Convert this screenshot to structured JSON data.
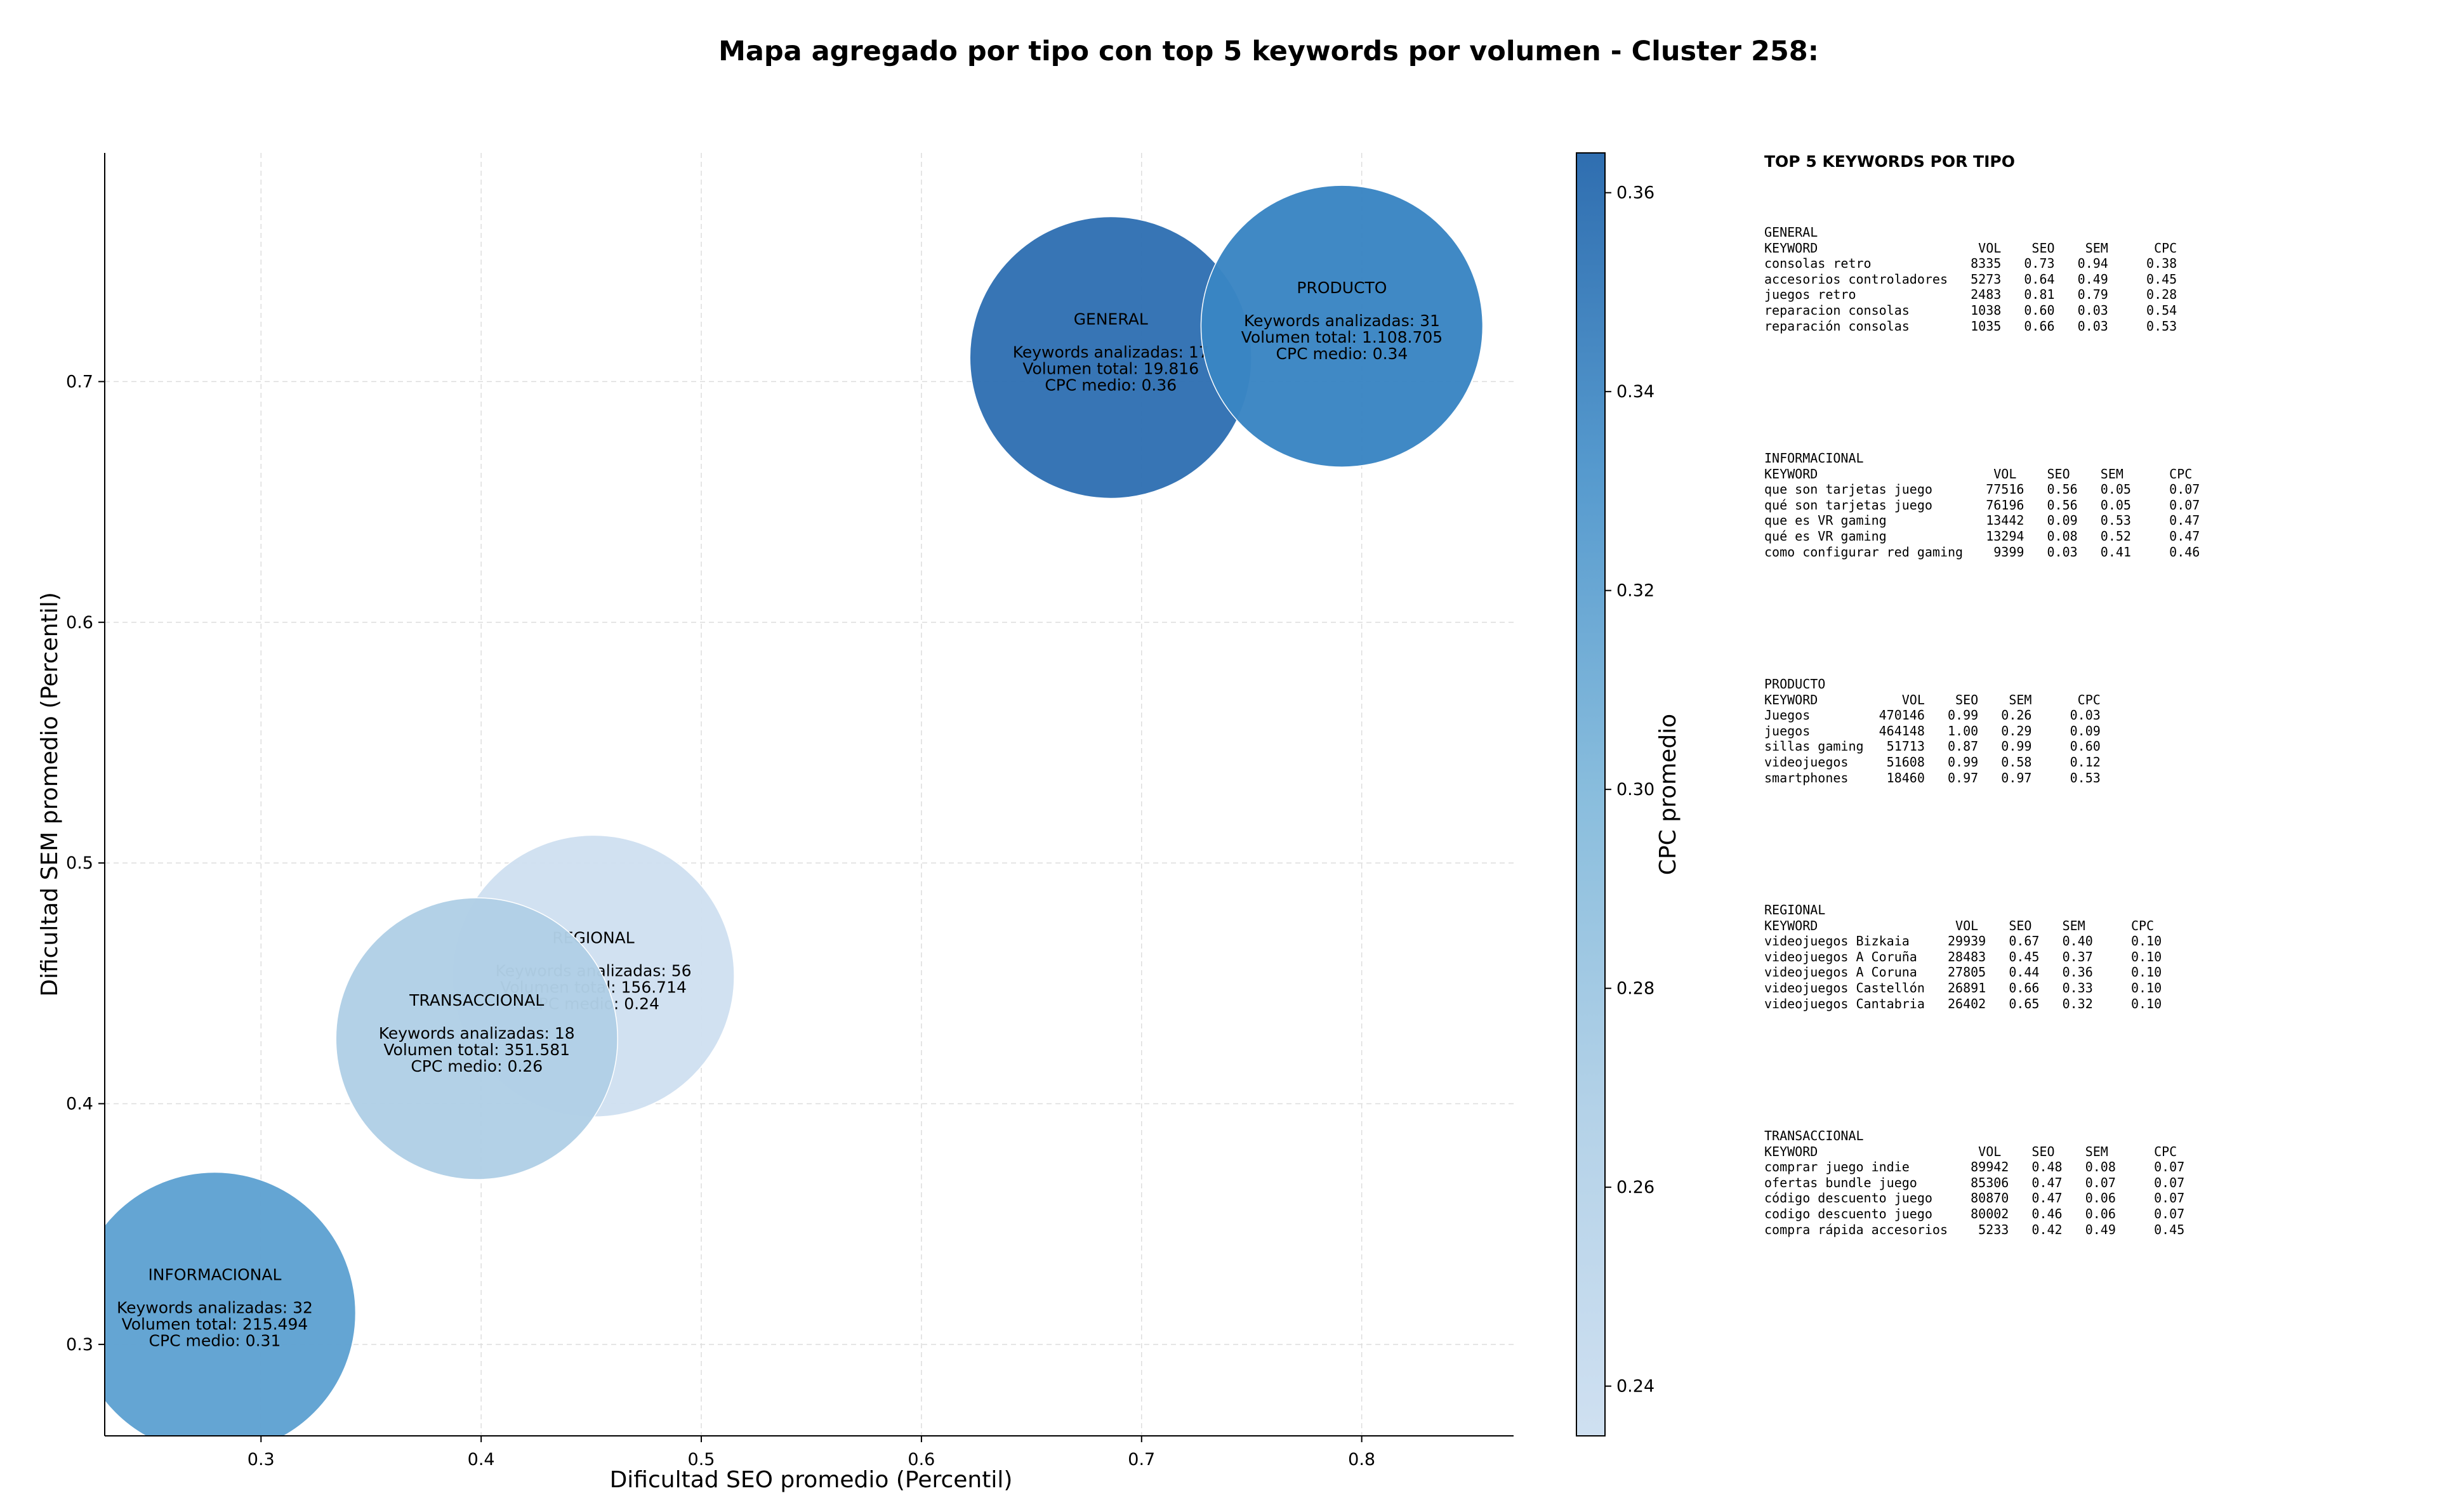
{
  "chart_data": {
    "type": "scatter",
    "title": "Mapa agregado por tipo con top 5 keywords por volumen - Cluster 258:",
    "xlabel": "Dificultad SEO promedio (Percentil)",
    "ylabel": "Dificultad SEM promedio (Percentil)",
    "xlim": [
      0.229,
      0.869
    ],
    "ylim": [
      0.262,
      0.795
    ],
    "xticks": [
      0.3,
      0.4,
      0.5,
      0.6,
      0.7,
      0.8
    ],
    "yticks": [
      0.3,
      0.4,
      0.5,
      0.6,
      0.7
    ],
    "grid": true,
    "colorbar": {
      "label": "CPC promedio",
      "min": 0.235,
      "max": 0.364,
      "ticks": [
        0.24,
        0.26,
        0.28,
        0.3,
        0.32,
        0.34,
        0.36
      ],
      "tick_labels": [
        "0.24",
        "0.26",
        "0.28",
        "0.30",
        "0.32",
        "0.34",
        "0.36"
      ]
    },
    "points": [
      {
        "name": "GENERAL",
        "x": 0.686,
        "y": 0.71,
        "cpc": 0.36,
        "color": "#3171b3",
        "lines": [
          "Keywords analizadas: 17",
          "Volumen total: 19.816",
          "CPC medio: 0.36"
        ]
      },
      {
        "name": "PRODUCTO",
        "x": 0.791,
        "y": 0.723,
        "cpc": 0.34,
        "color": "#3a85c3",
        "lines": [
          "Keywords analizadas: 31",
          "Volumen total: 1.108.705",
          "CPC medio: 0.34"
        ]
      },
      {
        "name": "REGIONAL",
        "x": 0.451,
        "y": 0.453,
        "cpc": 0.24,
        "color": "#cfe0f1",
        "lines": [
          "Keywords analizadas: 56",
          "Volumen total: 156.714",
          "CPC medio: 0.24"
        ]
      },
      {
        "name": "TRANSACCIONAL",
        "x": 0.398,
        "y": 0.427,
        "cpc": 0.26,
        "color": "#b1d0e6",
        "lines": [
          "Keywords analizadas: 18",
          "Volumen total: 351.581",
          "CPC medio: 0.26"
        ]
      },
      {
        "name": "INFORMACIONAL",
        "x": 0.279,
        "y": 0.313,
        "cpc": 0.31,
        "color": "#5fa2d2",
        "lines": [
          "Keywords analizadas: 32",
          "Volumen total: 215.494",
          "CPC medio: 0.31"
        ]
      }
    ]
  },
  "side_panel": {
    "title": "TOP 5 KEYWORDS POR TIPO",
    "blocks": [
      {
        "name": "GENERAL",
        "text": "GENERAL\nKEYWORD                     VOL    SEO    SEM      CPC\nconsolas retro             8335   0.73   0.94     0.38\naccesorios controladores   5273   0.64   0.49     0.45\njuegos retro               2483   0.81   0.79     0.28\nreparacion consolas        1038   0.60   0.03     0.54\nreparación consolas        1035   0.66   0.03     0.53"
      },
      {
        "name": "INFORMACIONAL",
        "text": "INFORMACIONAL\nKEYWORD                       VOL    SEO    SEM      CPC\nque son tarjetas juego       77516   0.56   0.05     0.07\nqué son tarjetas juego       76196   0.56   0.05     0.07\nque es VR gaming             13442   0.09   0.53     0.47\nqué es VR gaming             13294   0.08   0.52     0.47\ncomo configurar red gaming    9399   0.03   0.41     0.46"
      },
      {
        "name": "PRODUCTO",
        "text": "PRODUCTO\nKEYWORD           VOL    SEO    SEM      CPC\nJuegos         470146   0.99   0.26     0.03\njuegos         464148   1.00   0.29     0.09\nsillas gaming   51713   0.87   0.99     0.60\nvideojuegos     51608   0.99   0.58     0.12\nsmartphones     18460   0.97   0.97     0.53"
      },
      {
        "name": "REGIONAL",
        "text": "REGIONAL\nKEYWORD                  VOL    SEO    SEM      CPC\nvideojuegos Bizkaia     29939   0.67   0.40     0.10\nvideojuegos A Coruña    28483   0.45   0.37     0.10\nvideojuegos A Coruna    27805   0.44   0.36     0.10\nvideojuegos Castellón   26891   0.66   0.33     0.10\nvideojuegos Cantabria   26402   0.65   0.32     0.10"
      },
      {
        "name": "TRANSACCIONAL",
        "text": "TRANSACCIONAL\nKEYWORD                     VOL    SEO    SEM      CPC\ncomprar juego indie        89942   0.48   0.08     0.07\nofertas bundle juego       85306   0.47   0.07     0.07\ncódigo descuento juego     80870   0.47   0.06     0.07\ncodigo descuento juego     80002   0.46   0.06     0.07\ncompra rápida accesorios    5233   0.42   0.49     0.45"
      }
    ]
  }
}
